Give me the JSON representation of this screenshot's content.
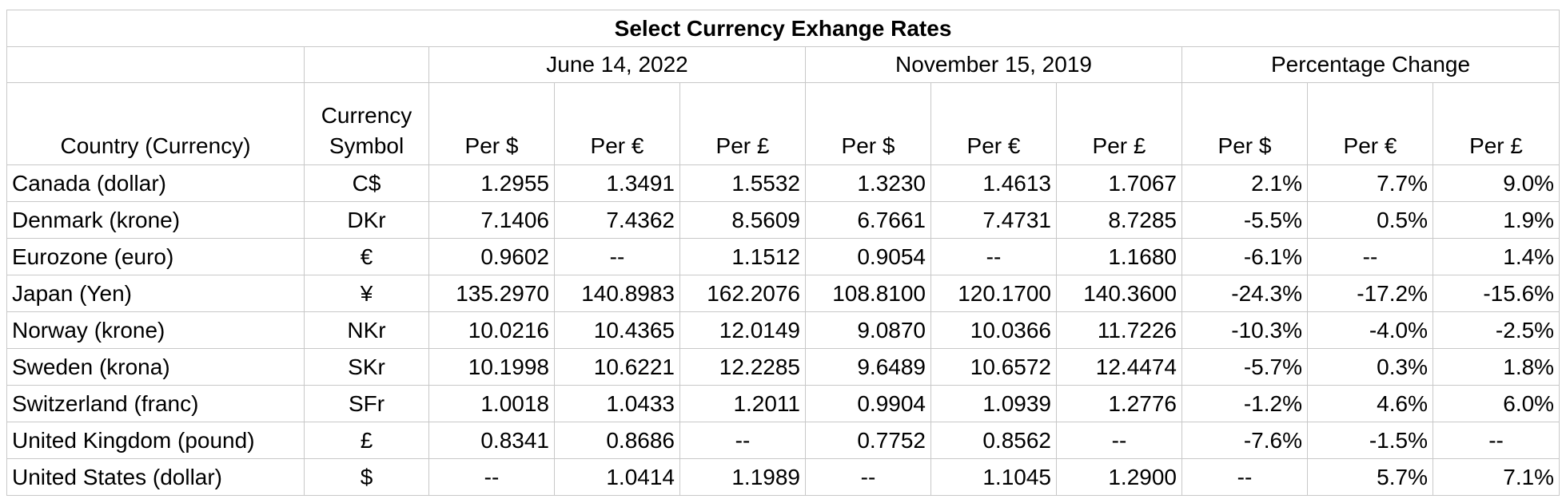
{
  "title": "Select Currency Exhange Rates",
  "groups": [
    "June 14, 2022",
    "November 15, 2019",
    "Percentage Change"
  ],
  "headers": {
    "country": "Country (Currency)",
    "symbol_line1": "Currency",
    "symbol_line2": "Symbol",
    "per": [
      "Per $",
      "Per €",
      "Per £",
      "Per $",
      "Per €",
      "Per £",
      "Per $",
      "Per €",
      "Per £"
    ]
  },
  "rows": [
    {
      "country": "Canada (dollar)",
      "symbol": "C$",
      "values": [
        "1.2955",
        "1.3491",
        "1.5532",
        "1.3230",
        "1.4613",
        "1.7067",
        "2.1%",
        "7.7%",
        "9.0%"
      ]
    },
    {
      "country": "Denmark (krone)",
      "symbol": "DKr",
      "values": [
        "7.1406",
        "7.4362",
        "8.5609",
        "6.7661",
        "7.4731",
        "8.7285",
        "-5.5%",
        "0.5%",
        "1.9%"
      ]
    },
    {
      "country": "Eurozone (euro)",
      "symbol": "€",
      "values": [
        "0.9602",
        "--",
        "1.1512",
        "0.9054",
        "--",
        "1.1680",
        "-6.1%",
        "--",
        "1.4%"
      ]
    },
    {
      "country": "Japan (Yen)",
      "symbol": "¥",
      "values": [
        "135.2970",
        "140.8983",
        "162.2076",
        "108.8100",
        "120.1700",
        "140.3600",
        "-24.3%",
        "-17.2%",
        "-15.6%"
      ]
    },
    {
      "country": "Norway (krone)",
      "symbol": "NKr",
      "values": [
        "10.0216",
        "10.4365",
        "12.0149",
        "9.0870",
        "10.0366",
        "11.7226",
        "-10.3%",
        "-4.0%",
        "-2.5%"
      ]
    },
    {
      "country": "Sweden (krona)",
      "symbol": "SKr",
      "values": [
        "10.1998",
        "10.6221",
        "12.2285",
        "9.6489",
        "10.6572",
        "12.4474",
        "-5.7%",
        "0.3%",
        "1.8%"
      ]
    },
    {
      "country": "Switzerland (franc)",
      "symbol": "SFr",
      "values": [
        "1.0018",
        "1.0433",
        "1.2011",
        "0.9904",
        "1.0939",
        "1.2776",
        "-1.2%",
        "4.6%",
        "6.0%"
      ]
    },
    {
      "country": "United Kingdom (pound)",
      "symbol": "£",
      "values": [
        "0.8341",
        "0.8686",
        "--",
        "0.7752",
        "0.8562",
        "--",
        "-7.6%",
        "-1.5%",
        "--"
      ]
    },
    {
      "country": "United States (dollar)",
      "symbol": "$",
      "values": [
        "--",
        "1.0414",
        "1.1989",
        "--",
        "1.1045",
        "1.2900",
        "--",
        "5.7%",
        "7.1%"
      ]
    }
  ]
}
